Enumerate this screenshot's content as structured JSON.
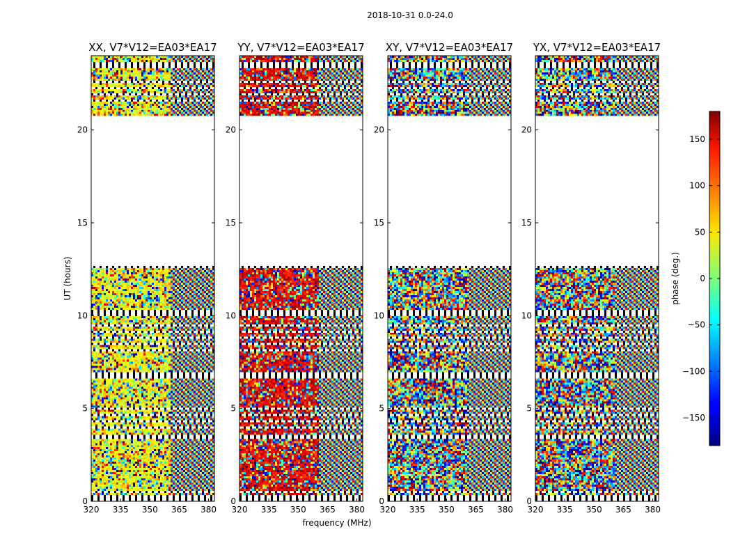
{
  "figure": {
    "suptitle": "2018-10-31 0.0-24.0",
    "xlabel": "frequency (MHz)",
    "ylabel": "UT (hours)"
  },
  "chart_data": {
    "type": "heatmap",
    "description_units": {
      "x": "MHz",
      "y": "hours",
      "value": "deg"
    },
    "xlim": [
      320,
      383
    ],
    "ylim": [
      0,
      24
    ],
    "xticks": [
      320,
      335,
      350,
      365,
      380
    ],
    "yticks": [
      0,
      5,
      10,
      15,
      20
    ],
    "data_time_ranges": [
      [
        0.0,
        12.7
      ],
      [
        20.8,
        24.0
      ]
    ],
    "no_data_range": [
      12.7,
      20.8
    ],
    "panels": [
      {
        "title": "XX, V7*V12=EA03*EA17",
        "pol": "XX"
      },
      {
        "title": "YY, V7*V12=EA03*EA17",
        "pol": "YY"
      },
      {
        "title": "XY, V7*V12=EA03*EA17",
        "pol": "XY"
      },
      {
        "title": "YX, V7*V12=EA03*EA17",
        "pol": "YX"
      }
    ],
    "colorbar": {
      "label": "phase (deg.)",
      "range": [
        -180,
        180
      ],
      "ticks": [
        -150,
        -100,
        -50,
        0,
        50,
        100,
        150
      ],
      "tick_labels": [
        "−150",
        "−100",
        "−50",
        "0",
        "50",
        "100",
        "150"
      ],
      "colormap": "jet"
    }
  }
}
